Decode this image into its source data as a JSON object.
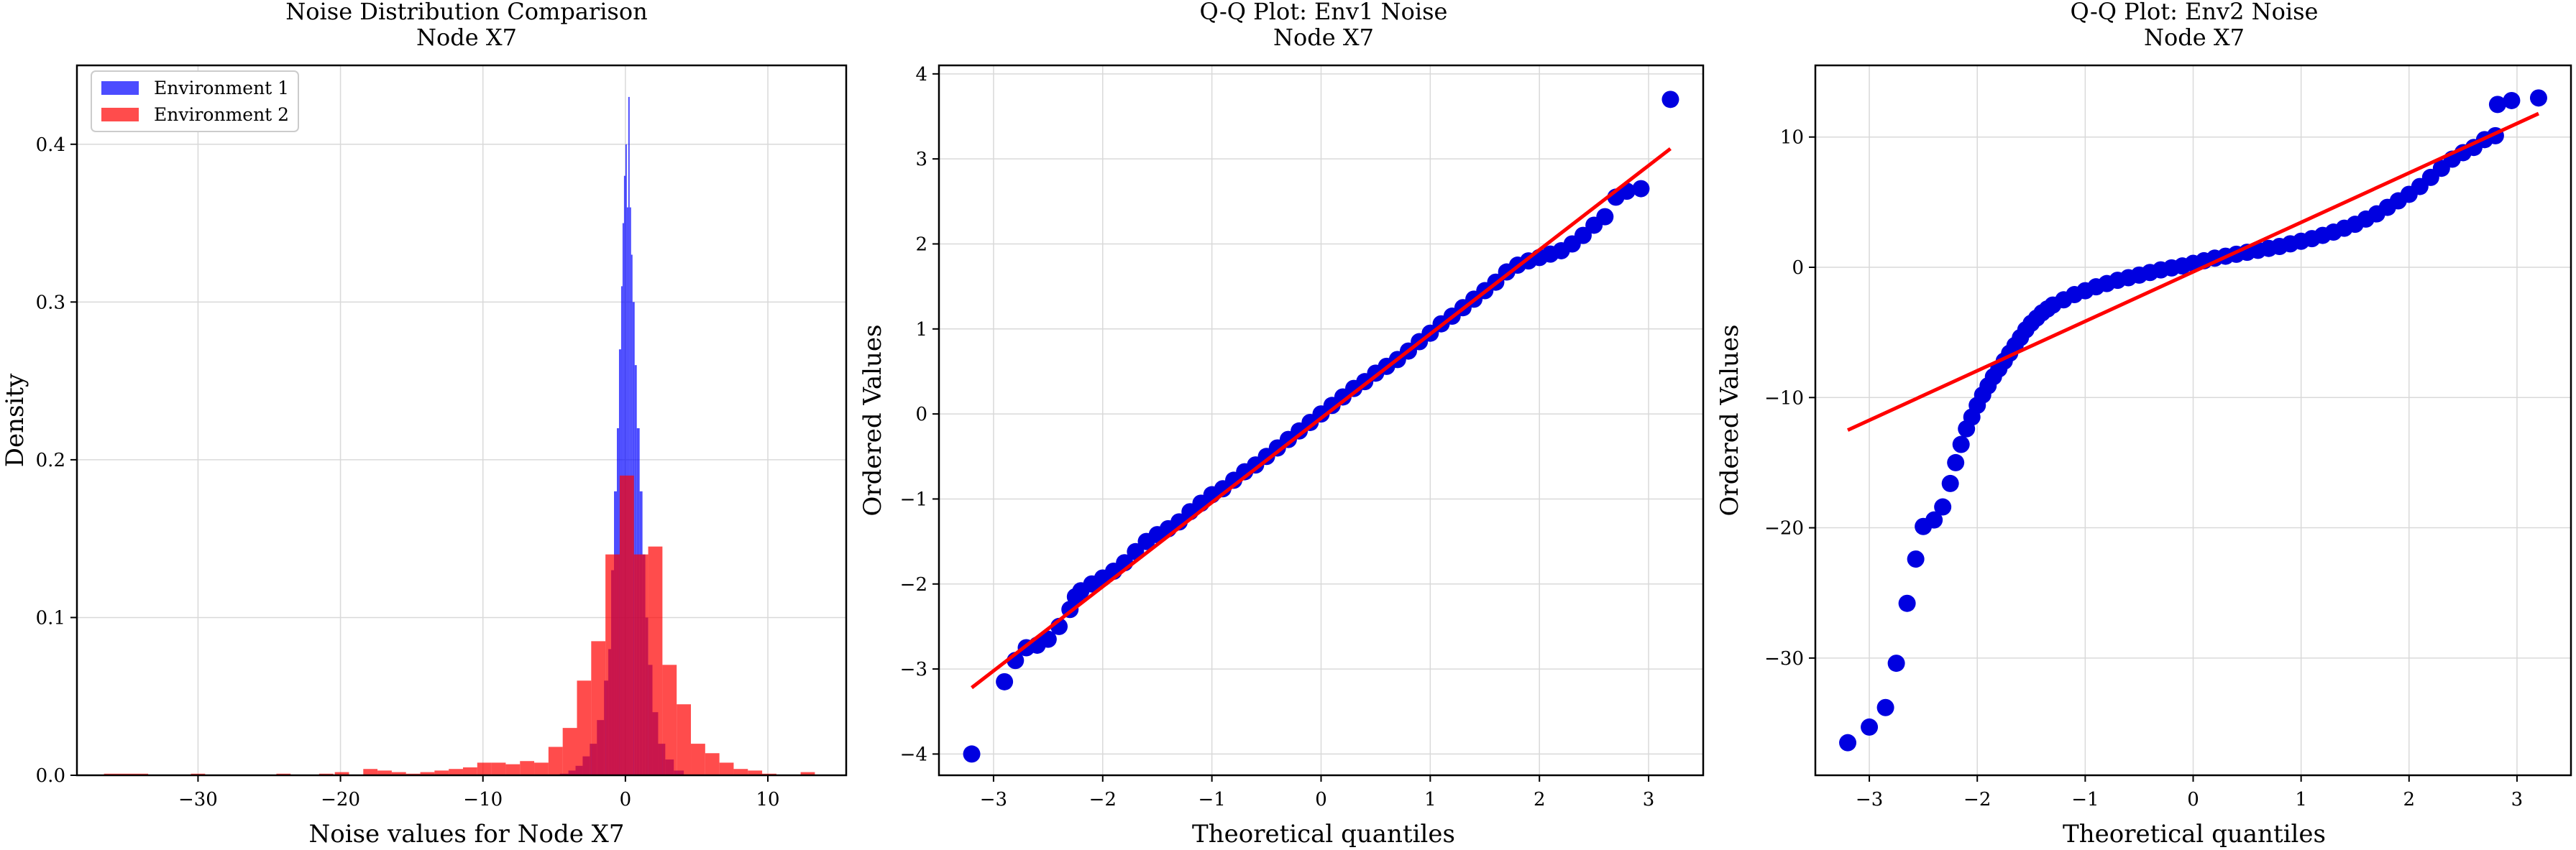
{
  "colors": {
    "env1": "#0000ff",
    "env2": "#ff0000",
    "crimson": "#c4103d",
    "grid": "#d9d9d9",
    "fit_line": "#ff0000",
    "points": "#0000e0"
  },
  "chart_data": [
    {
      "type": "bar",
      "title_line1": "Noise Distribution Comparison",
      "title_line2": "Node X7",
      "xlabel": "Noise values for Node X7",
      "ylabel": "Density",
      "xlim": [
        -38.5,
        15.5
      ],
      "ylim": [
        0,
        0.45
      ],
      "xticks": [
        -30,
        -20,
        -10,
        0,
        10
      ],
      "yticks": [
        0.0,
        0.1,
        0.2,
        0.3,
        0.4
      ],
      "ytick_labels": [
        "0.0",
        "0.1",
        "0.2",
        "0.3",
        "0.4"
      ],
      "grid": true,
      "legend": {
        "placement": "top-left",
        "entries": [
          "Environment 1",
          "Environment 2"
        ]
      },
      "series": [
        {
          "name": "Environment 1",
          "color": "#0000ff",
          "alpha": 0.7,
          "bins": [
            [
              -4.6,
              -4.0,
              0.001
            ],
            [
              -4.0,
              -3.5,
              0.003
            ],
            [
              -3.5,
              -3.0,
              0.006
            ],
            [
              -3.0,
              -2.5,
              0.012
            ],
            [
              -2.5,
              -2.0,
              0.02
            ],
            [
              -2.0,
              -1.5,
              0.035
            ],
            [
              -1.5,
              -1.2,
              0.06
            ],
            [
              -1.2,
              -1.0,
              0.08
            ],
            [
              -1.0,
              -0.8,
              0.13
            ],
            [
              -0.8,
              -0.6,
              0.18
            ],
            [
              -0.6,
              -0.45,
              0.22
            ],
            [
              -0.45,
              -0.3,
              0.27
            ],
            [
              -0.3,
              -0.2,
              0.31
            ],
            [
              -0.2,
              -0.1,
              0.35
            ],
            [
              -0.1,
              0.0,
              0.38
            ],
            [
              0.0,
              0.1,
              0.4
            ],
            [
              0.1,
              0.2,
              0.36
            ],
            [
              0.2,
              0.3,
              0.43
            ],
            [
              0.3,
              0.4,
              0.36
            ],
            [
              0.4,
              0.5,
              0.33
            ],
            [
              0.5,
              0.65,
              0.3
            ],
            [
              0.65,
              0.8,
              0.26
            ],
            [
              0.8,
              1.0,
              0.22
            ],
            [
              1.0,
              1.2,
              0.18
            ],
            [
              1.2,
              1.4,
              0.14
            ],
            [
              1.4,
              1.6,
              0.1
            ],
            [
              1.6,
              1.9,
              0.07
            ],
            [
              1.9,
              2.3,
              0.04
            ],
            [
              2.3,
              2.8,
              0.02
            ],
            [
              2.8,
              3.4,
              0.01
            ],
            [
              3.4,
              4.1,
              0.003
            ]
          ]
        },
        {
          "name": "Environment 2",
          "color": "#ff0000",
          "alpha": 0.7,
          "bins": [
            [
              -36.6,
              -33.5,
              0.001
            ],
            [
              -30.5,
              -29.5,
              0.001
            ],
            [
              -24.5,
              -23.5,
              0.001
            ],
            [
              -21.5,
              -20.5,
              0.001
            ],
            [
              -20.4,
              -19.4,
              0.002
            ],
            [
              -18.4,
              -17.4,
              0.004
            ],
            [
              -17.4,
              -16.4,
              0.003
            ],
            [
              -16.4,
              -15.4,
              0.002
            ],
            [
              -15.4,
              -14.4,
              0.001
            ],
            [
              -14.4,
              -13.4,
              0.002
            ],
            [
              -13.4,
              -12.4,
              0.003
            ],
            [
              -12.4,
              -11.4,
              0.004
            ],
            [
              -11.4,
              -10.4,
              0.005
            ],
            [
              -10.4,
              -9.4,
              0.008
            ],
            [
              -9.4,
              -8.4,
              0.008
            ],
            [
              -8.4,
              -7.4,
              0.007
            ],
            [
              -7.4,
              -6.4,
              0.009
            ],
            [
              -6.4,
              -5.4,
              0.008
            ],
            [
              -5.4,
              -4.4,
              0.018
            ],
            [
              -4.4,
              -3.4,
              0.03
            ],
            [
              -3.4,
              -2.4,
              0.06
            ],
            [
              -2.4,
              -1.4,
              0.085
            ],
            [
              -1.4,
              -0.4,
              0.14
            ],
            [
              -0.4,
              0.6,
              0.19
            ],
            [
              0.6,
              1.6,
              0.14
            ],
            [
              1.6,
              2.6,
              0.145
            ],
            [
              2.6,
              3.6,
              0.07
            ],
            [
              3.6,
              4.6,
              0.045
            ],
            [
              4.6,
              5.6,
              0.02
            ],
            [
              5.6,
              6.6,
              0.014
            ],
            [
              6.6,
              7.6,
              0.008
            ],
            [
              7.6,
              8.6,
              0.004
            ],
            [
              8.6,
              9.6,
              0.003
            ],
            [
              9.6,
              10.6,
              0.001
            ],
            [
              12.3,
              13.3,
              0.002
            ]
          ]
        }
      ]
    },
    {
      "type": "scatter",
      "title_line1": "Q-Q Plot: Env1 Noise",
      "title_line2": "Node X7",
      "xlabel": "Theoretical quantiles",
      "ylabel": "Ordered Values",
      "xlim": [
        -3.5,
        3.5
      ],
      "ylim": [
        -4.25,
        4.1
      ],
      "xticks": [
        -3,
        -2,
        -1,
        0,
        1,
        2,
        3
      ],
      "yticks": [
        -4,
        -3,
        -2,
        -1,
        0,
        1,
        2,
        3,
        4
      ],
      "grid": true,
      "fit_line": {
        "x": [
          -3.2,
          3.2
        ],
        "y": [
          -3.22,
          3.12
        ]
      },
      "points": [
        [
          -3.2,
          -4.0
        ],
        [
          -2.9,
          -3.15
        ],
        [
          -2.8,
          -2.9
        ],
        [
          -2.7,
          -2.75
        ],
        [
          -2.6,
          -2.72
        ],
        [
          -2.5,
          -2.65
        ],
        [
          -2.4,
          -2.5
        ],
        [
          -2.3,
          -2.3
        ],
        [
          -2.25,
          -2.15
        ],
        [
          -2.2,
          -2.08
        ],
        [
          -2.1,
          -2.0
        ],
        [
          -2.0,
          -1.93
        ],
        [
          -1.9,
          -1.85
        ],
        [
          -1.8,
          -1.75
        ],
        [
          -1.7,
          -1.62
        ],
        [
          -1.6,
          -1.5
        ],
        [
          -1.5,
          -1.42
        ],
        [
          -1.4,
          -1.35
        ],
        [
          -1.3,
          -1.27
        ],
        [
          -1.2,
          -1.15
        ],
        [
          -1.1,
          -1.05
        ],
        [
          -1.0,
          -0.95
        ],
        [
          -0.9,
          -0.88
        ],
        [
          -0.8,
          -0.78
        ],
        [
          -0.7,
          -0.68
        ],
        [
          -0.6,
          -0.6
        ],
        [
          -0.5,
          -0.5
        ],
        [
          -0.4,
          -0.4
        ],
        [
          -0.3,
          -0.3
        ],
        [
          -0.2,
          -0.2
        ],
        [
          -0.1,
          -0.1
        ],
        [
          0.0,
          0.0
        ],
        [
          0.1,
          0.1
        ],
        [
          0.2,
          0.2
        ],
        [
          0.3,
          0.3
        ],
        [
          0.4,
          0.38
        ],
        [
          0.5,
          0.48
        ],
        [
          0.6,
          0.56
        ],
        [
          0.7,
          0.64
        ],
        [
          0.8,
          0.74
        ],
        [
          0.9,
          0.85
        ],
        [
          1.0,
          0.95
        ],
        [
          1.1,
          1.06
        ],
        [
          1.2,
          1.15
        ],
        [
          1.3,
          1.25
        ],
        [
          1.4,
          1.35
        ],
        [
          1.5,
          1.45
        ],
        [
          1.6,
          1.55
        ],
        [
          1.7,
          1.67
        ],
        [
          1.8,
          1.75
        ],
        [
          1.9,
          1.8
        ],
        [
          2.0,
          1.84
        ],
        [
          2.1,
          1.88
        ],
        [
          2.2,
          1.92
        ],
        [
          2.3,
          2.0
        ],
        [
          2.4,
          2.1
        ],
        [
          2.5,
          2.22
        ],
        [
          2.6,
          2.32
        ],
        [
          2.7,
          2.55
        ],
        [
          2.8,
          2.62
        ],
        [
          2.93,
          2.65
        ],
        [
          3.2,
          3.7
        ]
      ]
    },
    {
      "type": "scatter",
      "title_line1": "Q-Q Plot: Env2 Noise",
      "title_line2": "Node X7",
      "xlabel": "Theoretical quantiles",
      "ylabel": "Ordered Values",
      "xlim": [
        -3.5,
        3.5
      ],
      "ylim": [
        -39,
        15.5
      ],
      "xticks": [
        -3,
        -2,
        -1,
        0,
        1,
        2,
        3
      ],
      "yticks": [
        -30,
        -20,
        -10,
        0,
        10
      ],
      "grid": true,
      "fit_line": {
        "x": [
          -3.2,
          3.2
        ],
        "y": [
          -12.5,
          11.8
        ]
      },
      "points": [
        [
          -3.2,
          -36.5
        ],
        [
          -3.0,
          -35.3
        ],
        [
          -2.85,
          -33.8
        ],
        [
          -2.75,
          -30.4
        ],
        [
          -2.65,
          -25.8
        ],
        [
          -2.57,
          -22.4
        ],
        [
          -2.5,
          -19.9
        ],
        [
          -2.4,
          -19.4
        ],
        [
          -2.32,
          -18.4
        ],
        [
          -2.25,
          -16.6
        ],
        [
          -2.2,
          -15.0
        ],
        [
          -2.15,
          -13.6
        ],
        [
          -2.1,
          -12.4
        ],
        [
          -2.05,
          -11.5
        ],
        [
          -2.0,
          -10.6
        ],
        [
          -1.95,
          -9.8
        ],
        [
          -1.9,
          -9.1
        ],
        [
          -1.85,
          -8.4
        ],
        [
          -1.8,
          -7.8
        ],
        [
          -1.75,
          -7.2
        ],
        [
          -1.7,
          -6.6
        ],
        [
          -1.65,
          -6.0
        ],
        [
          -1.6,
          -5.4
        ],
        [
          -1.55,
          -4.8
        ],
        [
          -1.5,
          -4.3
        ],
        [
          -1.45,
          -3.9
        ],
        [
          -1.4,
          -3.5
        ],
        [
          -1.35,
          -3.2
        ],
        [
          -1.3,
          -2.9
        ],
        [
          -1.2,
          -2.5
        ],
        [
          -1.1,
          -2.1
        ],
        [
          -1.0,
          -1.8
        ],
        [
          -0.9,
          -1.5
        ],
        [
          -0.8,
          -1.25
        ],
        [
          -0.7,
          -1.0
        ],
        [
          -0.6,
          -0.8
        ],
        [
          -0.5,
          -0.6
        ],
        [
          -0.4,
          -0.4
        ],
        [
          -0.3,
          -0.2
        ],
        [
          -0.2,
          -0.05
        ],
        [
          -0.1,
          0.1
        ],
        [
          0.0,
          0.3
        ],
        [
          0.1,
          0.5
        ],
        [
          0.2,
          0.7
        ],
        [
          0.3,
          0.85
        ],
        [
          0.4,
          1.0
        ],
        [
          0.5,
          1.15
        ],
        [
          0.6,
          1.3
        ],
        [
          0.7,
          1.45
        ],
        [
          0.8,
          1.6
        ],
        [
          0.9,
          1.8
        ],
        [
          1.0,
          2.0
        ],
        [
          1.1,
          2.2
        ],
        [
          1.2,
          2.45
        ],
        [
          1.3,
          2.7
        ],
        [
          1.4,
          3.0
        ],
        [
          1.5,
          3.3
        ],
        [
          1.6,
          3.7
        ],
        [
          1.7,
          4.1
        ],
        [
          1.8,
          4.6
        ],
        [
          1.9,
          5.1
        ],
        [
          2.0,
          5.6
        ],
        [
          2.1,
          6.2
        ],
        [
          2.2,
          6.9
        ],
        [
          2.3,
          7.6
        ],
        [
          2.4,
          8.3
        ],
        [
          2.5,
          8.8
        ],
        [
          2.6,
          9.2
        ],
        [
          2.7,
          9.8
        ],
        [
          2.8,
          10.1
        ],
        [
          2.82,
          12.5
        ],
        [
          2.95,
          12.8
        ],
        [
          3.2,
          13.0
        ]
      ]
    }
  ]
}
